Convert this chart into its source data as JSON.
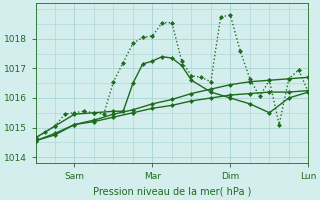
{
  "xlabel": "Pression niveau de la mer( hPa )",
  "bg_color": "#d4eeed",
  "grid_color": "#b0d8d8",
  "line_color": "#1e6b1e",
  "xlim": [
    0,
    168
  ],
  "ylim": [
    1013.8,
    1019.2
  ],
  "yticks": [
    1014,
    1015,
    1016,
    1017,
    1018
  ],
  "xtick_positions": [
    24,
    72,
    120,
    168
  ],
  "xtick_labels": [
    "Sam",
    "Mar",
    "Dim",
    "Lun"
  ],
  "series": [
    {
      "x": [
        0,
        12,
        24,
        36,
        48,
        60,
        72,
        84,
        96,
        108,
        120,
        132,
        144,
        156,
        168
      ],
      "y": [
        1014.55,
        1014.75,
        1015.1,
        1015.2,
        1015.35,
        1015.5,
        1015.65,
        1015.75,
        1015.9,
        1016.0,
        1016.1,
        1016.15,
        1016.2,
        1016.2,
        1016.25
      ],
      "style": "-",
      "marker": "D",
      "markersize": 2.0,
      "linewidth": 1.0
    },
    {
      "x": [
        0,
        12,
        24,
        36,
        48,
        60,
        72,
        84,
        96,
        108,
        120,
        132,
        144,
        156,
        168
      ],
      "y": [
        1014.55,
        1014.8,
        1015.1,
        1015.25,
        1015.45,
        1015.6,
        1015.8,
        1015.95,
        1016.15,
        1016.3,
        1016.45,
        1016.55,
        1016.6,
        1016.65,
        1016.7
      ],
      "style": "-",
      "marker": "D",
      "markersize": 2.0,
      "linewidth": 1.0
    },
    {
      "x": [
        0,
        12,
        24,
        36,
        48,
        54,
        60,
        66,
        72,
        78,
        84,
        90,
        96,
        108,
        120,
        132,
        144,
        156,
        168
      ],
      "y": [
        1014.65,
        1015.05,
        1015.45,
        1015.5,
        1015.55,
        1015.55,
        1016.5,
        1017.15,
        1017.25,
        1017.4,
        1017.35,
        1017.1,
        1016.6,
        1016.2,
        1016.0,
        1015.8,
        1015.5,
        1016.0,
        1016.2
      ],
      "style": "-",
      "marker": "D",
      "markersize": 2.0,
      "linewidth": 1.0
    },
    {
      "x": [
        0,
        6,
        12,
        18,
        24,
        30,
        36,
        42,
        48,
        54,
        60,
        66,
        72,
        78,
        84,
        90,
        96,
        102,
        108,
        114,
        120,
        126,
        132,
        138,
        144,
        150,
        156,
        162,
        168
      ],
      "y": [
        1014.65,
        1014.85,
        1015.05,
        1015.45,
        1015.5,
        1015.55,
        1015.5,
        1015.45,
        1016.55,
        1017.2,
        1017.85,
        1018.05,
        1018.1,
        1018.55,
        1018.55,
        1017.25,
        1016.75,
        1016.7,
        1016.55,
        1018.75,
        1018.8,
        1017.6,
        1016.65,
        1016.05,
        1016.6,
        1015.1,
        1016.65,
        1016.95,
        1016.2
      ],
      "style": ":",
      "marker": "D",
      "markersize": 2.0,
      "linewidth": 1.0
    }
  ]
}
